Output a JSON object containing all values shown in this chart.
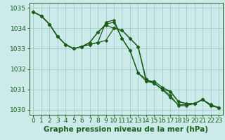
{
  "title": "Graphe pression niveau de la mer (hPa)",
  "background_color": "#cdeaea",
  "grid_color": "#aacfcf",
  "line_color": "#1a5e1a",
  "marker_color": "#1a5e1a",
  "ylim": [
    1029.75,
    1035.25
  ],
  "xlim": [
    -0.5,
    23.5
  ],
  "yticks": [
    1030,
    1031,
    1032,
    1033,
    1034,
    1035
  ],
  "xticks": [
    0,
    1,
    2,
    3,
    4,
    5,
    6,
    7,
    8,
    9,
    10,
    11,
    12,
    13,
    14,
    15,
    16,
    17,
    18,
    19,
    20,
    21,
    22,
    23
  ],
  "series": [
    [
      1034.8,
      1034.6,
      1034.2,
      1033.6,
      1033.2,
      1033.0,
      1033.1,
      1033.2,
      1033.3,
      1033.4,
      1034.0,
      1033.9,
      1033.5,
      1033.1,
      1031.5,
      1031.3,
      1031.0,
      1030.9,
      1030.4,
      1030.3,
      1030.3,
      1030.5,
      1030.2,
      1030.1
    ],
    [
      1034.8,
      1034.6,
      1034.2,
      1033.6,
      1033.2,
      1033.0,
      1033.1,
      1033.2,
      1033.3,
      1034.3,
      1034.4,
      1033.5,
      1032.9,
      1031.8,
      1031.5,
      1031.3,
      1031.0,
      1030.7,
      1030.2,
      1030.2,
      1030.3,
      1030.5,
      1030.2,
      1030.1
    ],
    [
      1034.8,
      1034.6,
      1034.2,
      1033.6,
      1033.2,
      1033.0,
      1033.1,
      1033.3,
      1033.8,
      1034.15,
      1034.0,
      1033.9,
      1033.5,
      1033.1,
      1031.4,
      1031.4,
      1031.1,
      1030.9,
      1030.4,
      1030.3,
      1030.3,
      1030.5,
      1030.25,
      1030.1
    ],
    [
      1034.8,
      1034.6,
      1034.2,
      1033.6,
      1033.2,
      1033.0,
      1033.1,
      1033.3,
      1033.8,
      1034.2,
      1034.3,
      1033.5,
      1032.9,
      1031.8,
      1031.4,
      1031.3,
      1031.0,
      1030.6,
      1030.25,
      1030.25,
      1030.3,
      1030.5,
      1030.25,
      1030.1
    ]
  ],
  "tick_fontsize": 6.5,
  "label_fontsize": 7.5,
  "label_fontweight": "bold",
  "linewidth": 0.9,
  "marker_size": 2.5
}
